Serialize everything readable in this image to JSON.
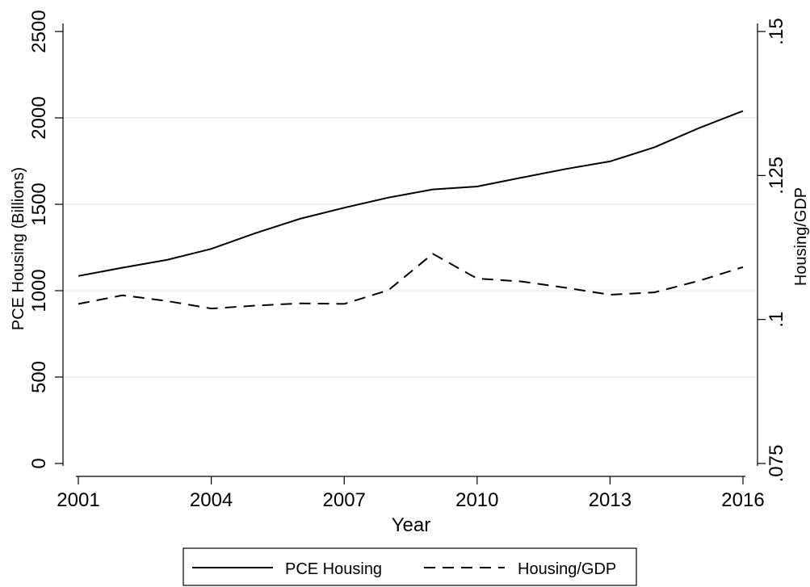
{
  "chart_data": {
    "type": "line",
    "title": "",
    "xlabel": "Year",
    "ylabel_left": "PCE Housing (Billions)",
    "ylabel_right": "Housing/GDP",
    "x": [
      2001,
      2002,
      2003,
      2004,
      2005,
      2006,
      2007,
      2008,
      2009,
      2010,
      2011,
      2012,
      2013,
      2014,
      2015,
      2016
    ],
    "xlim": [
      2001,
      2016
    ],
    "xticks": [
      2001,
      2004,
      2007,
      2010,
      2013,
      2016
    ],
    "xtick_labels": [
      "2001",
      "2004",
      "2007",
      "2010",
      "2013",
      "2016"
    ],
    "ylim_left": [
      0,
      2500
    ],
    "yticks_left": [
      0,
      500,
      1000,
      1500,
      2000,
      2500
    ],
    "ytick_labels_left": [
      "0",
      "500",
      "1000",
      "1500",
      "2000",
      "2500"
    ],
    "ylim_right": [
      0.075,
      0.15
    ],
    "yticks_right": [
      0.075,
      0.1,
      0.125,
      0.15
    ],
    "ytick_labels_right": [
      ".075",
      ".1",
      ".125",
      ".15"
    ],
    "grid": "horizontal, left axis",
    "legend_position": "bottom",
    "series": [
      {
        "name": "PCE Housing",
        "axis": "left",
        "style": "solid",
        "color": "#000000",
        "values": [
          1085,
          1133,
          1178,
          1242,
          1333,
          1416,
          1480,
          1539,
          1586,
          1603,
          1654,
          1704,
          1748,
          1830,
          1940,
          2040
        ]
      },
      {
        "name": "Housing/GDP",
        "axis": "right",
        "style": "dashed",
        "color": "#000000",
        "values": [
          0.1027,
          0.1042,
          0.1032,
          0.1019,
          0.1024,
          0.1028,
          0.1027,
          0.1051,
          0.1114,
          0.1071,
          0.1066,
          0.1055,
          0.1043,
          0.1047,
          0.1067,
          0.1091
        ]
      }
    ]
  }
}
